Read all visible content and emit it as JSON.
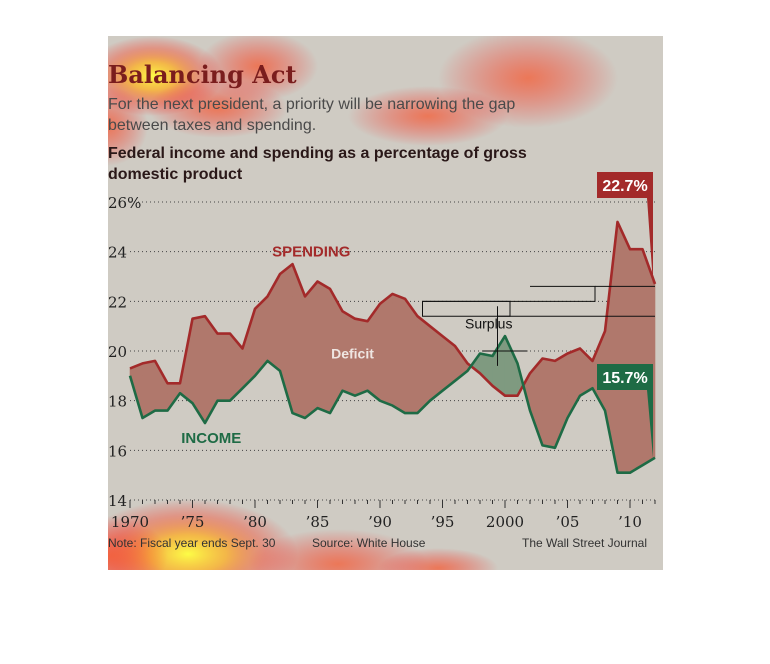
{
  "header": {
    "title": "Balancing Act",
    "subtitle": "For the next president, a priority will be narrowing the gap between taxes and spending.",
    "description": "Federal income and spending as a percentage of gross domestic product"
  },
  "footer": {
    "note": "Note: Fiscal year ends Sept. 30",
    "source": "Source: White House",
    "credit": "The Wall Street Journal"
  },
  "colors": {
    "spending": "#a32a2a",
    "income": "#1e6b45",
    "deficit_fill": "#b0786c",
    "surplus_fill": "#7f9a80",
    "panel_bg": "#cfcbc3",
    "title": "#7a1d1d"
  },
  "chart_data": {
    "type": "area",
    "title": "Federal income and spending as a percentage of gross domestic product",
    "xlim": [
      1970,
      2012
    ],
    "ylim": [
      14,
      26
    ],
    "y_ticks": [
      14,
      16,
      18,
      20,
      22,
      24,
      26
    ],
    "y_tick_labels": [
      "14",
      "16",
      "18",
      "20",
      "22",
      "24",
      "26%"
    ],
    "x_ticks": [
      1970,
      1975,
      1980,
      1985,
      1990,
      1995,
      2000,
      2005,
      2010
    ],
    "x_tick_labels": [
      "1970",
      "’75",
      "’80",
      "’85",
      "’90",
      "’95",
      "2000",
      "’05",
      "’10"
    ],
    "grid": true,
    "x": [
      1970,
      1971,
      1972,
      1973,
      1974,
      1975,
      1976,
      1977,
      1978,
      1979,
      1980,
      1981,
      1982,
      1983,
      1984,
      1985,
      1986,
      1987,
      1988,
      1989,
      1990,
      1991,
      1992,
      1993,
      1994,
      1995,
      1996,
      1997,
      1998,
      1999,
      2000,
      2001,
      2002,
      2003,
      2004,
      2005,
      2006,
      2007,
      2008,
      2009,
      2010,
      2011,
      2012
    ],
    "series": [
      {
        "name": "SPENDING",
        "values": [
          19.3,
          19.5,
          19.6,
          18.7,
          18.7,
          21.3,
          21.4,
          20.7,
          20.7,
          20.1,
          21.7,
          22.2,
          23.1,
          23.5,
          22.2,
          22.8,
          22.5,
          21.6,
          21.3,
          21.2,
          21.9,
          22.3,
          22.1,
          21.4,
          21.0,
          20.6,
          20.2,
          19.5,
          19.1,
          18.6,
          18.2,
          18.2,
          19.1,
          19.7,
          19.6,
          19.9,
          20.1,
          19.6,
          20.8,
          25.2,
          24.1,
          24.1,
          22.7
        ]
      },
      {
        "name": "INCOME",
        "values": [
          19.0,
          17.3,
          17.6,
          17.6,
          18.3,
          17.9,
          17.1,
          18.0,
          18.0,
          18.5,
          19.0,
          19.6,
          19.2,
          17.5,
          17.3,
          17.7,
          17.5,
          18.4,
          18.2,
          18.4,
          18.0,
          17.8,
          17.5,
          17.5,
          18.0,
          18.4,
          18.8,
          19.2,
          19.9,
          19.8,
          20.6,
          19.5,
          17.6,
          16.2,
          16.1,
          17.3,
          18.2,
          18.5,
          17.6,
          15.1,
          15.1,
          15.4,
          15.7
        ]
      }
    ],
    "annotations": [
      {
        "text": "SPENDING",
        "x": 1984.5,
        "y": 24.0
      },
      {
        "text": "INCOME",
        "x": 1976.5,
        "y": 16.5
      },
      {
        "text": "Deficit",
        "x": 1987.8,
        "y": 19.9
      },
      {
        "text": "Surplus",
        "x": 1996.8,
        "y": 21.1
      }
    ],
    "end_labels": {
      "spending": "22.7%",
      "income": "15.7%"
    }
  }
}
